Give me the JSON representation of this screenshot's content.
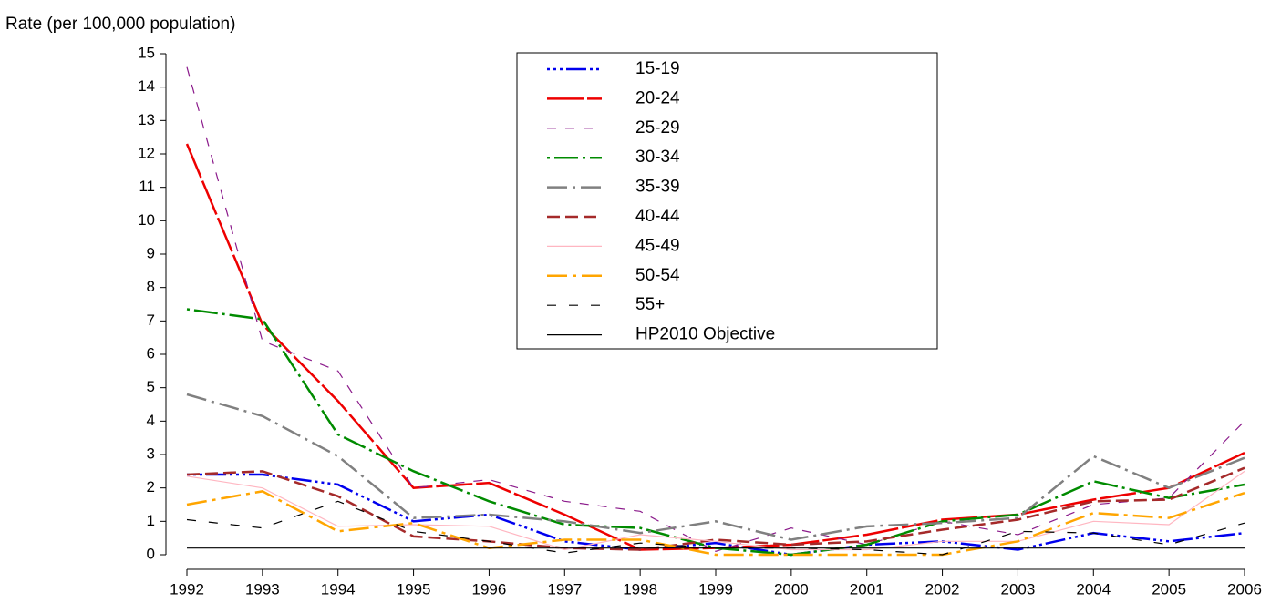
{
  "chart_data": {
    "type": "line",
    "y_label": "Rate (per 100,000 population)",
    "categories": [
      "1992",
      "1993",
      "1994",
      "1995",
      "1996",
      "1997",
      "1998",
      "1999",
      "2000",
      "2001",
      "2002",
      "2003",
      "2004",
      "2005",
      "2006"
    ],
    "ylim": [
      0,
      15
    ],
    "yticks": [
      0,
      1,
      2,
      3,
      4,
      5,
      6,
      7,
      8,
      9,
      10,
      11,
      12,
      13,
      14,
      15
    ],
    "series": [
      {
        "name": "15-19",
        "color": "#0000ee",
        "values": [
          2.4,
          2.4,
          2.1,
          1.0,
          1.2,
          0.4,
          0.15,
          0.35,
          0.0,
          0.3,
          0.4,
          0.15,
          0.65,
          0.4,
          0.65
        ]
      },
      {
        "name": "20-24",
        "color": "#ee0000",
        "values": [
          12.3,
          6.9,
          4.6,
          2.0,
          2.15,
          1.2,
          0.15,
          0.2,
          0.3,
          0.6,
          1.05,
          1.2,
          1.65,
          2.0,
          3.05
        ]
      },
      {
        "name": "25-29",
        "color": "#8b1a8b",
        "values": [
          14.6,
          6.4,
          5.5,
          2.0,
          2.25,
          1.6,
          1.3,
          0.1,
          0.8,
          0.3,
          1.0,
          0.6,
          1.5,
          1.7,
          4.0
        ]
      },
      {
        "name": "30-34",
        "color": "#008b00",
        "values": [
          7.35,
          7.05,
          3.6,
          2.5,
          1.6,
          0.9,
          0.8,
          0.2,
          0.0,
          0.3,
          1.0,
          1.2,
          2.2,
          1.7,
          2.1
        ]
      },
      {
        "name": "35-39",
        "color": "#808080",
        "values": [
          4.8,
          4.15,
          2.95,
          1.1,
          1.2,
          1.0,
          0.65,
          1.0,
          0.45,
          0.85,
          0.95,
          1.1,
          2.95,
          2.0,
          2.9
        ]
      },
      {
        "name": "40-44",
        "color": "#a52a2a",
        "values": [
          2.4,
          2.5,
          1.75,
          0.55,
          0.4,
          0.2,
          0.15,
          0.45,
          0.3,
          0.4,
          0.75,
          1.05,
          1.6,
          1.65,
          2.6
        ]
      },
      {
        "name": "45-49",
        "color": "#ffb6c1",
        "values": [
          2.35,
          2.0,
          0.85,
          0.9,
          0.85,
          0.15,
          0.6,
          0.4,
          0.15,
          0.15,
          0.4,
          0.4,
          1.0,
          0.9,
          2.5
        ]
      },
      {
        "name": "50-54",
        "color": "#ffa500",
        "values": [
          1.5,
          1.9,
          0.7,
          0.95,
          0.2,
          0.45,
          0.45,
          0.0,
          0.0,
          0.0,
          0.0,
          0.4,
          1.25,
          1.1,
          1.85
        ]
      },
      {
        "name": "55+",
        "color": "#000000",
        "values": [
          1.05,
          0.8,
          1.6,
          0.7,
          0.4,
          0.05,
          0.35,
          0.2,
          0.2,
          0.15,
          0.0,
          0.7,
          0.65,
          0.3,
          0.95
        ]
      },
      {
        "name": "HP2010 Objective",
        "color": "#000000",
        "values": [
          0.2,
          0.2,
          0.2,
          0.2,
          0.2,
          0.2,
          0.2,
          0.2,
          0.2,
          0.2,
          0.2,
          0.2,
          0.2,
          0.2,
          0.2
        ]
      }
    ]
  }
}
